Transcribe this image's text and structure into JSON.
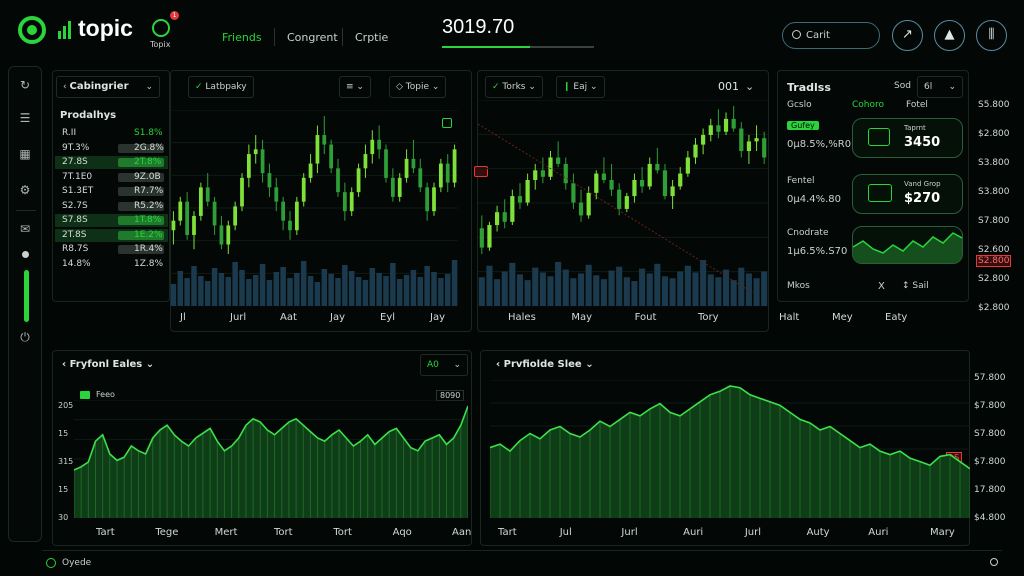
{
  "brand": {
    "name": "topic",
    "avatar_label": "Topix",
    "notif_count": "1"
  },
  "nav": {
    "items": [
      "Friends",
      "Congrent",
      "Crptie"
    ],
    "active": 0
  },
  "ticker": {
    "price": "3019.70"
  },
  "search": {
    "placeholder": "Carit"
  },
  "top_actions": [
    "trend-icon",
    "chart-icon",
    "filter-icon"
  ],
  "sidebar": {
    "icons": [
      "history-icon",
      "list-icon",
      "grid-icon",
      "settings-icon",
      "message-icon",
      "power-icon"
    ]
  },
  "left_panel": {
    "dropdown": "Cabingrier",
    "header": "Prodalhys",
    "rows": [
      {
        "a": "R.II",
        "b": "S1.8%",
        "bar": "none"
      },
      {
        "a": "9T.3%",
        "b": "2G.8%",
        "bar": "dark"
      },
      {
        "a": "27.8S",
        "b": "2T.8%",
        "bar": "green"
      },
      {
        "a": "7T.1E0",
        "b": "9Z.0B",
        "bar": "dark"
      },
      {
        "a": "S1.3ET",
        "b": "R7.7%",
        "bar": "dark"
      },
      {
        "a": "S2.7S",
        "b": "R5.2%",
        "bar": "dark"
      },
      {
        "a": "S7.8S",
        "b": "1T.8%",
        "bar": "green"
      },
      {
        "a": "2T.8S",
        "b": "1E.2%",
        "bar": "green"
      },
      {
        "a": "R8.7S",
        "b": "1R.4%",
        "bar": "dark"
      },
      {
        "a": "14.8%",
        "b": "1Z.8%",
        "bar": "none"
      }
    ]
  },
  "chart1": {
    "chip1": "Latbpaky",
    "chip2": "≡",
    "chip3": "Topie",
    "x_labels": [
      "Jl",
      "Jurl",
      "Aat",
      "Jay",
      "Eyl",
      "Jay"
    ]
  },
  "chart2": {
    "chip1": "Torks",
    "chip2": "Eaj",
    "chip3": "001",
    "x_labels": [
      "Hales",
      "May",
      "Fout",
      "Tory"
    ]
  },
  "trades": {
    "title": "Tradlss",
    "chip1": "Sod",
    "chip2": "6l",
    "col_headers": [
      "Gcslo",
      "Cohoro",
      "Fotel"
    ],
    "items": [
      {
        "badge": "Gufey",
        "value": "0µ8.5%,%R0",
        "stat_label": "Taprnt",
        "stat_value": "3450"
      },
      {
        "label": "Fentel",
        "value": "0µ4.4%.80",
        "stat_label": "Vand Grop",
        "stat_value": "$270"
      },
      {
        "label": "Cnodrate",
        "value": "1µ6.5%.S70",
        "stat_label": "",
        "stat_value": ""
      }
    ],
    "footer_left": "Mkos",
    "footer_x": "X",
    "footer_right": "Sail",
    "x_labels": [
      "Halt",
      "Mey",
      "Eaty"
    ]
  },
  "right_axis_top": [
    "S5.800",
    "$2.800",
    "S3.800",
    "S3.800",
    "S7.800",
    "S2.600",
    "S2.800",
    "$2.800"
  ],
  "right_axis_top_badge": "S2.800",
  "bottom_left": {
    "dropdown": "Fryfonl Eales",
    "chip": "A0",
    "legend": "Feeo",
    "legend_right": "8090",
    "y_labels": [
      "205",
      "15",
      "315",
      "15",
      "30"
    ],
    "x_labels": [
      "Tart",
      "Tege",
      "Mert",
      "Tort",
      "Tort",
      "Aqo",
      "Aan"
    ]
  },
  "bottom_right": {
    "dropdown": "Prvfiolde Slee",
    "badge": "$S",
    "x_labels": [
      "Tart",
      "Jul",
      "Jurl",
      "Auri",
      "Jurl",
      "Auty",
      "Auri",
      "Mary"
    ]
  },
  "right_axis_bottom": [
    "57.800",
    "$7.800",
    "S7.800",
    "$7.800",
    "17.800",
    "$4.800"
  ],
  "footer": {
    "label": "Oyede"
  },
  "colors": {
    "accent": "#2ad43b",
    "bg": "#020705",
    "negative": "#e23a3a"
  },
  "chart_data": [
    {
      "type": "candlestick",
      "ohlc": [
        [
          48,
          52,
          45,
          50
        ],
        [
          50,
          55,
          49,
          54
        ],
        [
          54,
          56,
          46,
          47
        ],
        [
          47,
          52,
          44,
          51
        ],
        [
          51,
          58,
          50,
          57
        ],
        [
          57,
          60,
          53,
          54
        ],
        [
          54,
          55,
          47,
          49
        ],
        [
          49,
          51,
          44,
          45
        ],
        [
          45,
          50,
          43,
          49
        ],
        [
          49,
          54,
          48,
          53
        ],
        [
          53,
          60,
          52,
          59
        ],
        [
          59,
          66,
          57,
          64
        ],
        [
          64,
          68,
          62,
          65
        ],
        [
          65,
          67,
          58,
          60
        ],
        [
          60,
          62,
          55,
          57
        ],
        [
          57,
          59,
          52,
          54
        ],
        [
          54,
          55,
          48,
          50
        ],
        [
          50,
          52,
          46,
          48
        ],
        [
          48,
          55,
          47,
          54
        ],
        [
          54,
          60,
          53,
          59
        ],
        [
          59,
          64,
          58,
          62
        ],
        [
          62,
          70,
          60,
          68
        ],
        [
          68,
          72,
          64,
          66
        ],
        [
          66,
          67,
          60,
          61
        ],
        [
          61,
          63,
          55,
          56
        ],
        [
          56,
          58,
          50,
          52
        ],
        [
          52,
          57,
          51,
          56
        ],
        [
          56,
          62,
          55,
          61
        ],
        [
          61,
          66,
          59,
          64
        ],
        [
          64,
          69,
          62,
          67
        ],
        [
          67,
          70,
          63,
          65
        ],
        [
          65,
          66,
          58,
          59
        ],
        [
          59,
          61,
          54,
          55
        ],
        [
          55,
          60,
          54,
          59
        ],
        [
          59,
          65,
          58,
          63
        ],
        [
          63,
          67,
          60,
          61
        ],
        [
          61,
          63,
          56,
          57
        ],
        [
          57,
          58,
          50,
          52
        ],
        [
          52,
          58,
          51,
          57
        ],
        [
          57,
          63,
          56,
          62
        ],
        [
          62,
          64,
          56,
          58
        ],
        [
          58,
          66,
          57,
          65
        ]
      ],
      "volume": [
        22,
        35,
        28,
        40,
        30,
        25,
        38,
        33,
        29,
        44,
        36,
        27,
        31,
        42,
        26,
        34,
        39,
        28,
        33,
        45,
        30,
        24,
        37,
        32,
        28,
        41,
        35,
        29,
        26,
        38,
        33,
        30,
        43,
        27,
        31,
        36,
        29,
        40,
        34,
        28,
        32,
        46
      ]
    },
    {
      "type": "candlestick",
      "ohlc": [
        [
          38,
          42,
          30,
          32
        ],
        [
          32,
          40,
          31,
          39
        ],
        [
          39,
          45,
          37,
          43
        ],
        [
          43,
          47,
          38,
          40
        ],
        [
          40,
          50,
          39,
          48
        ],
        [
          48,
          52,
          44,
          46
        ],
        [
          46,
          55,
          45,
          53
        ],
        [
          53,
          58,
          50,
          56
        ],
        [
          56,
          60,
          52,
          54
        ],
        [
          54,
          62,
          53,
          60
        ],
        [
          60,
          65,
          57,
          58
        ],
        [
          58,
          60,
          50,
          52
        ],
        [
          52,
          55,
          44,
          46
        ],
        [
          46,
          50,
          40,
          42
        ],
        [
          42,
          51,
          41,
          49
        ],
        [
          49,
          56,
          47,
          55
        ],
        [
          55,
          60,
          52,
          53
        ],
        [
          53,
          58,
          48,
          50
        ],
        [
          50,
          52,
          42,
          44
        ],
        [
          44,
          49,
          43,
          48
        ],
        [
          48,
          55,
          46,
          53
        ],
        [
          53,
          57,
          49,
          51
        ],
        [
          51,
          60,
          50,
          58
        ],
        [
          58,
          63,
          55,
          56
        ],
        [
          56,
          58,
          47,
          48
        ],
        [
          48,
          53,
          44,
          51
        ],
        [
          51,
          57,
          50,
          55
        ],
        [
          55,
          62,
          54,
          60
        ],
        [
          60,
          66,
          58,
          64
        ],
        [
          64,
          69,
          61,
          67
        ],
        [
          67,
          72,
          65,
          70
        ],
        [
          70,
          75,
          66,
          68
        ],
        [
          68,
          74,
          67,
          72
        ],
        [
          72,
          76,
          68,
          69
        ],
        [
          69,
          71,
          60,
          62
        ],
        [
          62,
          67,
          58,
          65
        ],
        [
          65,
          70,
          62,
          66
        ],
        [
          66,
          68,
          58,
          60
        ]
      ],
      "volume": [
        30,
        42,
        28,
        36,
        45,
        33,
        27,
        40,
        35,
        31,
        46,
        38,
        29,
        34,
        43,
        32,
        28,
        37,
        41,
        30,
        26,
        39,
        34,
        44,
        31,
        29,
        36,
        42,
        35,
        48,
        33,
        30,
        38,
        27,
        40,
        34,
        29,
        36
      ]
    },
    {
      "type": "area",
      "values": [
        30,
        32,
        35,
        48,
        52,
        40,
        36,
        38,
        45,
        42,
        40,
        50,
        55,
        58,
        52,
        48,
        45,
        50,
        53,
        56,
        48,
        42,
        45,
        50,
        58,
        62,
        60,
        55,
        52,
        56,
        60,
        62,
        58,
        54,
        50,
        48,
        52,
        55,
        50,
        45,
        48,
        52,
        46,
        50,
        54,
        56,
        50,
        44,
        42,
        48,
        50,
        52,
        46,
        50,
        58,
        70
      ]
    },
    {
      "type": "area",
      "values": [
        40,
        42,
        38,
        44,
        48,
        45,
        50,
        52,
        48,
        46,
        50,
        55,
        52,
        56,
        60,
        58,
        62,
        65,
        60,
        58,
        62,
        66,
        70,
        72,
        75,
        74,
        70,
        68,
        66,
        64,
        60,
        56,
        54,
        50,
        52,
        48,
        44,
        40,
        42,
        38,
        36,
        38,
        34,
        32,
        30,
        35,
        36,
        32,
        28
      ]
    }
  ]
}
